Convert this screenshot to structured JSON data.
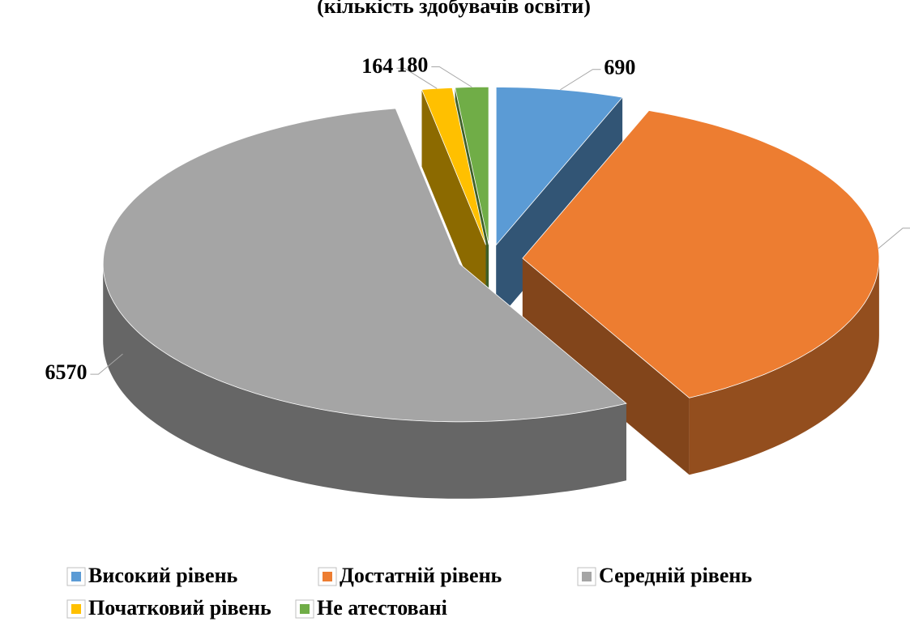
{
  "chart_data": {
    "type": "pie3d",
    "title": "(кількість здобувачів освіти)",
    "categories": [
      "Високий рівень",
      "Достатній рівень",
      "Середній рівень",
      "Початковий рівень",
      "Не атестовані"
    ],
    "values": [
      690,
      4370,
      6570,
      164,
      180
    ],
    "colors": [
      "#5b9bd5",
      "#ed7d31",
      "#a5a5a5",
      "#ffc000",
      "#70ad47"
    ]
  }
}
